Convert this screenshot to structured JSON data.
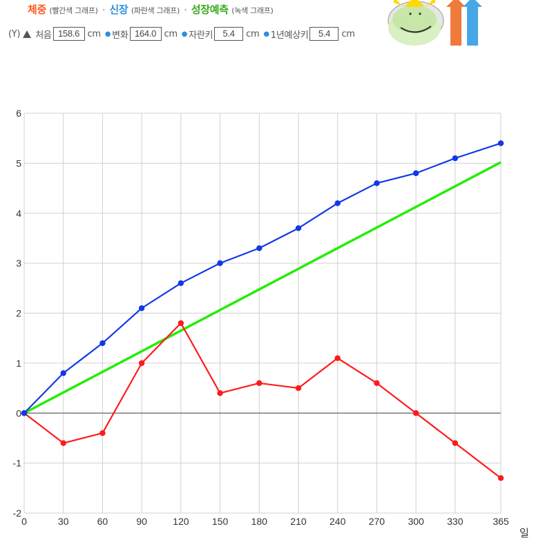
{
  "header": {
    "title_weight": "체중",
    "title_weight_sub": "(빨간색 그래프)",
    "sep1": "·",
    "title_height": "신장",
    "title_height_sub": "(파란색 그래프)",
    "sep2": "·",
    "title_growth": "성장예측",
    "title_growth_sub": "(녹색 그래프)",
    "y_label": "(Y)",
    "start_label": "처음",
    "start_value": "158.6",
    "start_unit": "cm",
    "change_label": "변화",
    "change_value": "164.0",
    "change_unit": "cm",
    "grown_label": "자란키",
    "grown_value": "5.4",
    "grown_unit": "cm",
    "predict_label": "1년예상키",
    "predict_value": "5.4",
    "predict_unit": "cm"
  },
  "colors": {
    "weight": "#ff1a1a",
    "height": "#1038e8",
    "growth": "#22ee00",
    "grid": "#d0d0d0",
    "zero_line": "#666666"
  },
  "chart_data": {
    "type": "line",
    "x": [
      0,
      30,
      60,
      90,
      120,
      150,
      180,
      210,
      240,
      270,
      300,
      330,
      365
    ],
    "xlabel": "일",
    "ylabel": "",
    "xlim": [
      0,
      365
    ],
    "ylim": [
      -2,
      6
    ],
    "x_ticks": [
      0,
      30,
      60,
      90,
      120,
      150,
      180,
      210,
      240,
      270,
      300,
      330,
      365
    ],
    "y_ticks": [
      -2,
      -1,
      0,
      1,
      2,
      3,
      4,
      5,
      6
    ],
    "grid": true,
    "series": [
      {
        "key": "height",
        "color": "#1038e8",
        "markers": true,
        "values": [
          0,
          0.8,
          1.4,
          2.1,
          2.6,
          3.0,
          3.3,
          3.7,
          4.2,
          4.6,
          4.8,
          5.1,
          5.4
        ]
      },
      {
        "key": "weight",
        "color": "#ff1a1a",
        "markers": true,
        "values": [
          0,
          -0.6,
          -0.4,
          1.0,
          1.8,
          0.4,
          0.6,
          0.5,
          1.1,
          0.6,
          0.0,
          -0.6,
          -1.3
        ]
      },
      {
        "key": "growth",
        "color": "#22ee00",
        "markers": false,
        "x": [
          0,
          365
        ],
        "values": [
          0,
          5.02
        ]
      }
    ]
  }
}
